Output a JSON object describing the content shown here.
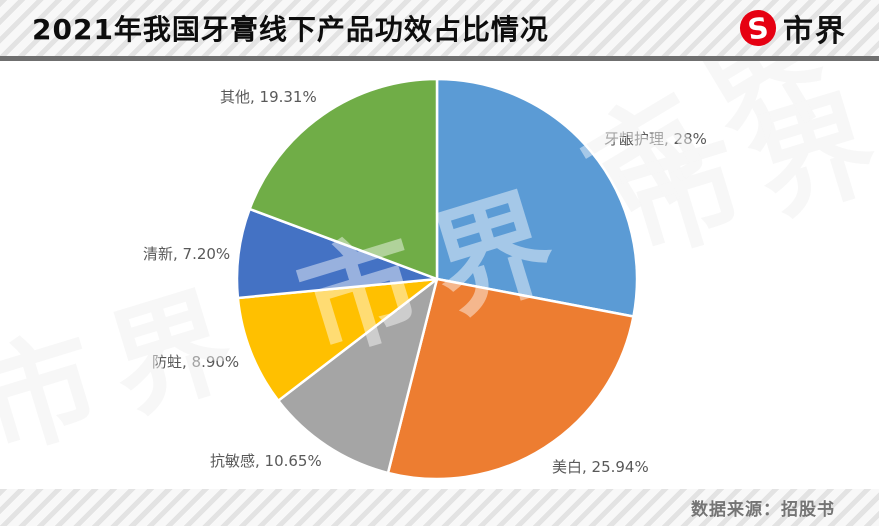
{
  "header": {
    "title": "2021年我国牙膏线下产品功效占比情况",
    "logo_text": "市界",
    "logo_color": "#E60012",
    "logo_glyph": "S"
  },
  "footer": {
    "source": "数据来源：招股书"
  },
  "watermark": {
    "text": "市界"
  },
  "colors": {
    "accent_red": "#E60012",
    "label_gray": "#595959",
    "separator_gray": "#6f6f6f"
  },
  "chart_data": {
    "type": "pie",
    "title": "2021年我国牙膏线下产品功效占比情况",
    "unit": "percent",
    "start_angle_deg": 0,
    "direction": "clockwise",
    "total": 100,
    "slices": [
      {
        "label": "牙龈护理",
        "value": 28,
        "display": "牙龈护理, 28%",
        "color": "#5B9BD5"
      },
      {
        "label": "美白",
        "value": 25.94,
        "display": "美白, 25.94%",
        "color": "#ED7D31"
      },
      {
        "label": "抗敏感",
        "value": 10.65,
        "display": "抗敏感, 10.65%",
        "color": "#A5A5A5"
      },
      {
        "label": "防蛀",
        "value": 8.9,
        "display": "防蛀, 8.90%",
        "color": "#FFC000"
      },
      {
        "label": "清新",
        "value": 7.2,
        "display": "清新, 7.20%",
        "color": "#4472C4"
      },
      {
        "label": "其他",
        "value": 19.31,
        "display": "其他, 19.31%",
        "color": "#70AD47"
      }
    ]
  }
}
